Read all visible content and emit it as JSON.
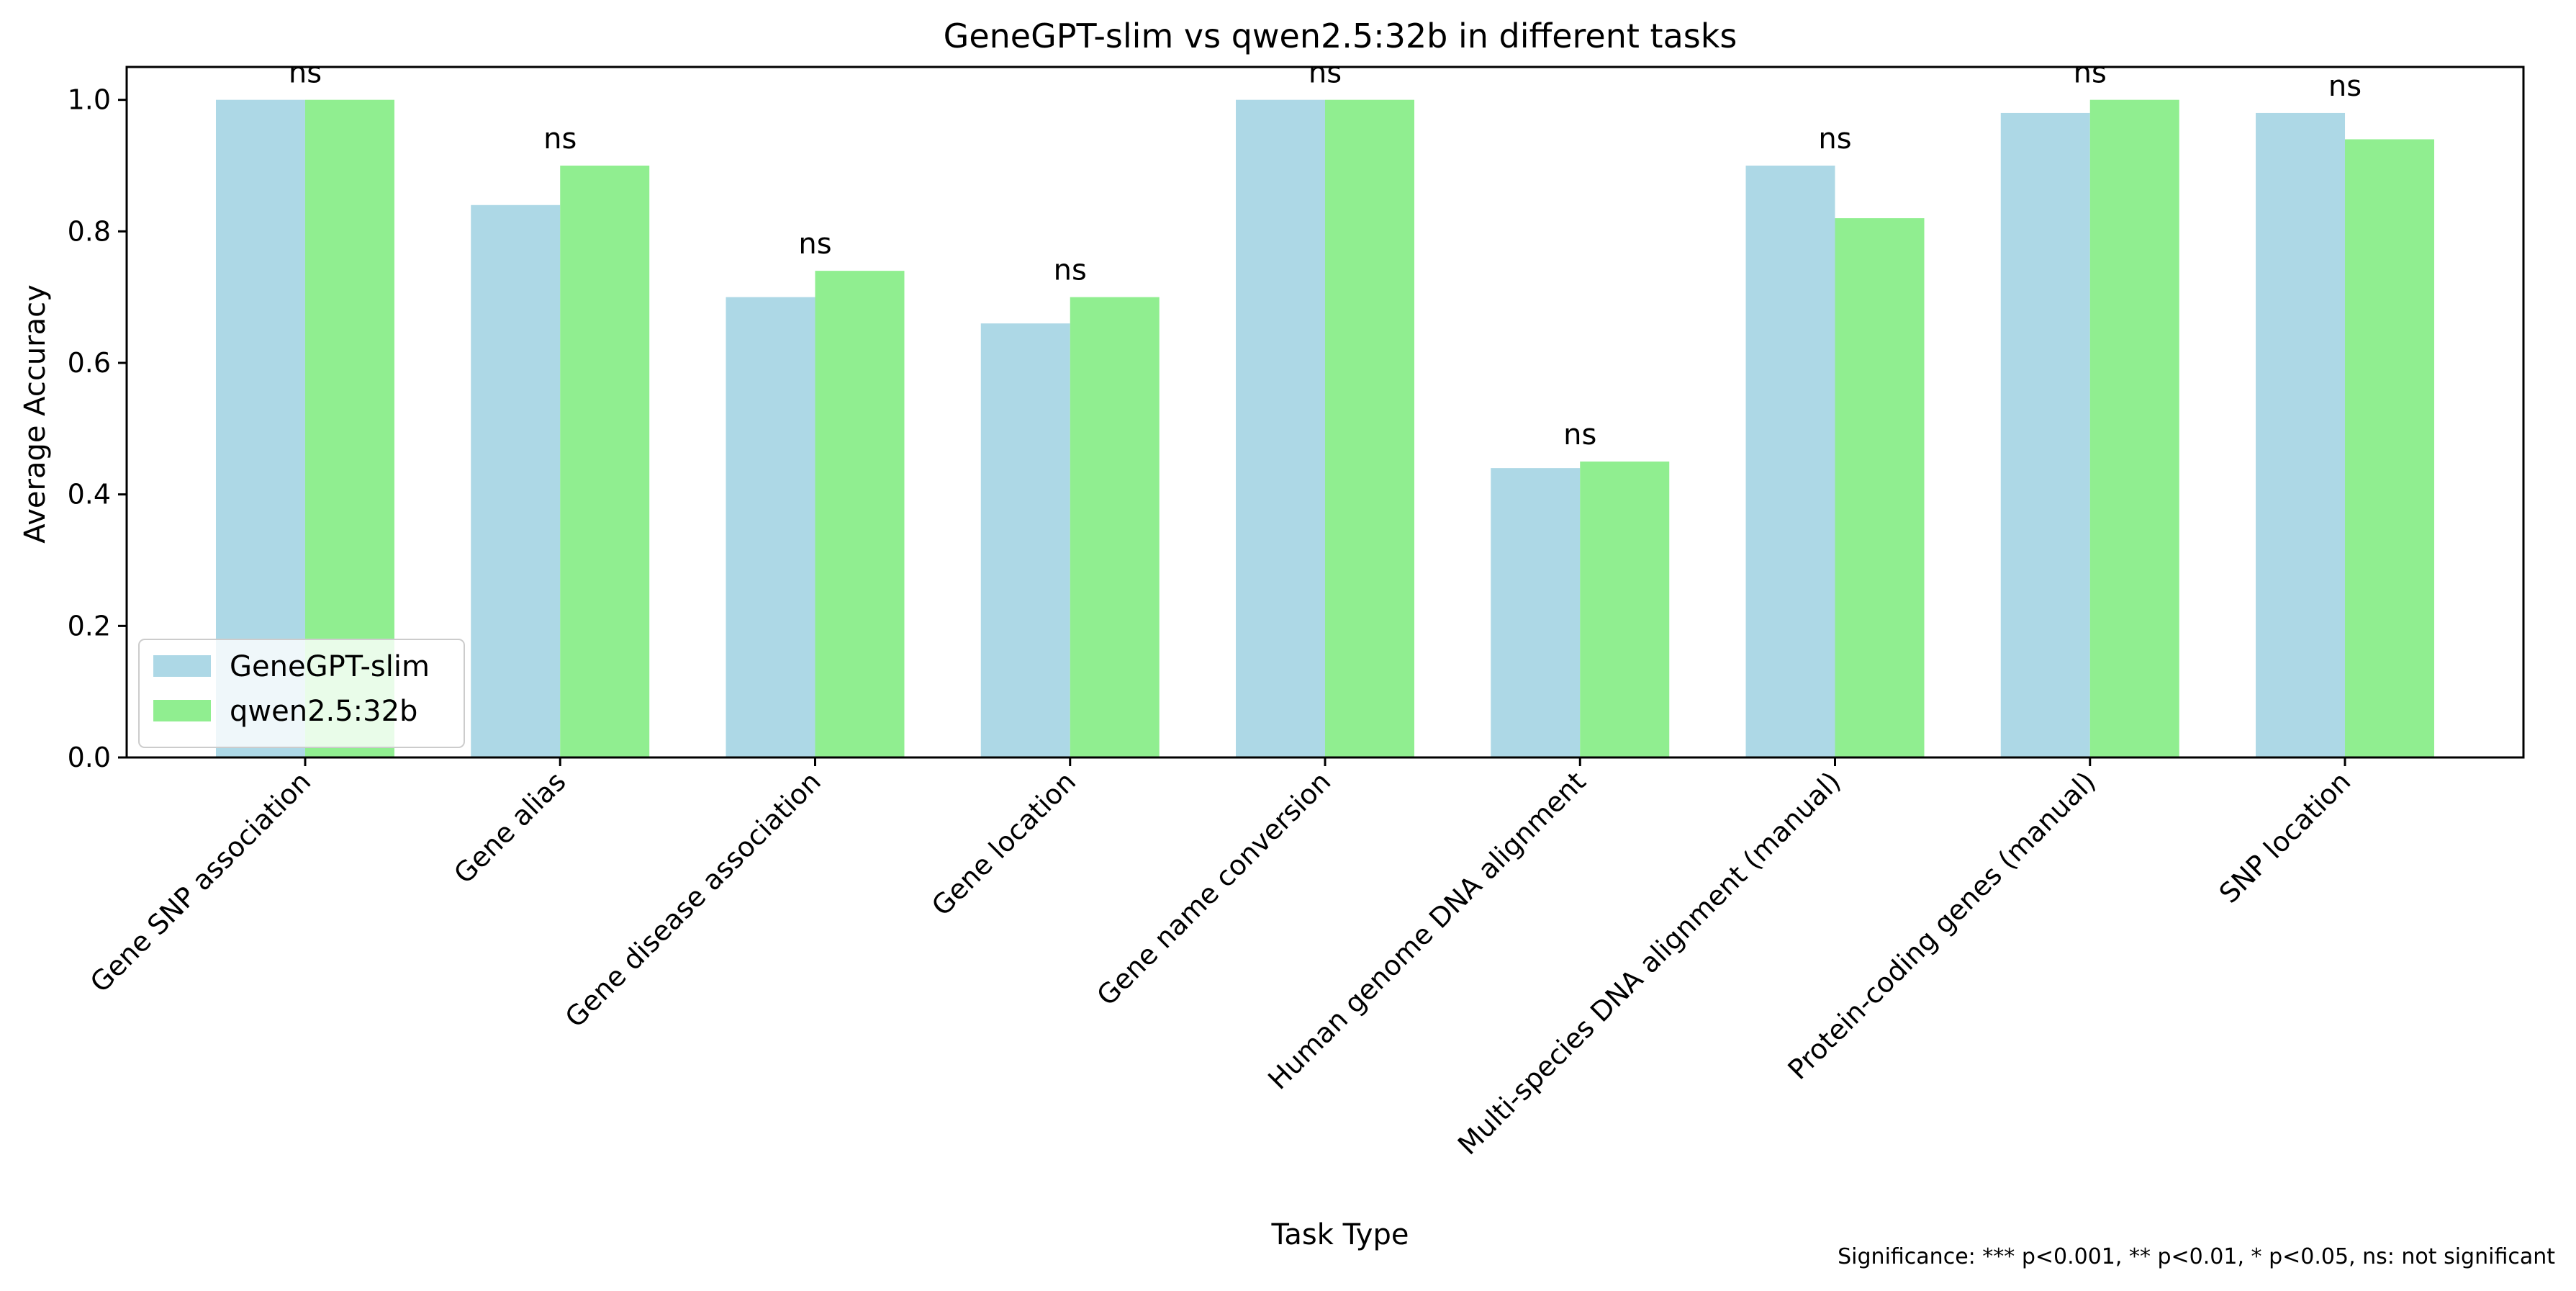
{
  "chart_data": {
    "type": "bar",
    "title": "GeneGPT-slim vs qwen2.5:32b in different tasks",
    "xlabel": "Task Type",
    "ylabel": "Average Accuracy",
    "ylim": [
      0,
      1.05
    ],
    "yticks": [
      0.0,
      0.2,
      0.4,
      0.6,
      0.8,
      1.0
    ],
    "ytick_labels": [
      "0.0",
      "0.2",
      "0.4",
      "0.6",
      "0.8",
      "1.0"
    ],
    "grid": false,
    "legend_position": "lower-left",
    "categories": [
      "Gene SNP association",
      "Gene alias",
      "Gene disease association",
      "Gene location",
      "Gene name conversion",
      "Human genome DNA alignment",
      "Multi-species DNA alignment (manual)",
      "Protein-coding genes (manual)",
      "SNP location"
    ],
    "series": [
      {
        "name": "GeneGPT-slim",
        "color": "#add8e6",
        "values": [
          1.0,
          0.84,
          0.7,
          0.66,
          1.0,
          0.44,
          0.9,
          0.98,
          0.98
        ]
      },
      {
        "name": "qwen2.5:32b",
        "color": "#90ee90",
        "values": [
          1.0,
          0.9,
          0.74,
          0.7,
          1.0,
          0.45,
          0.82,
          1.0,
          0.94
        ]
      }
    ],
    "significance": [
      "ns",
      "ns",
      "ns",
      "ns",
      "ns",
      "ns",
      "ns",
      "ns",
      "ns"
    ],
    "footnote": "Significance: *** p<0.001, ** p<0.01, * p<0.05, ns: not significant"
  }
}
